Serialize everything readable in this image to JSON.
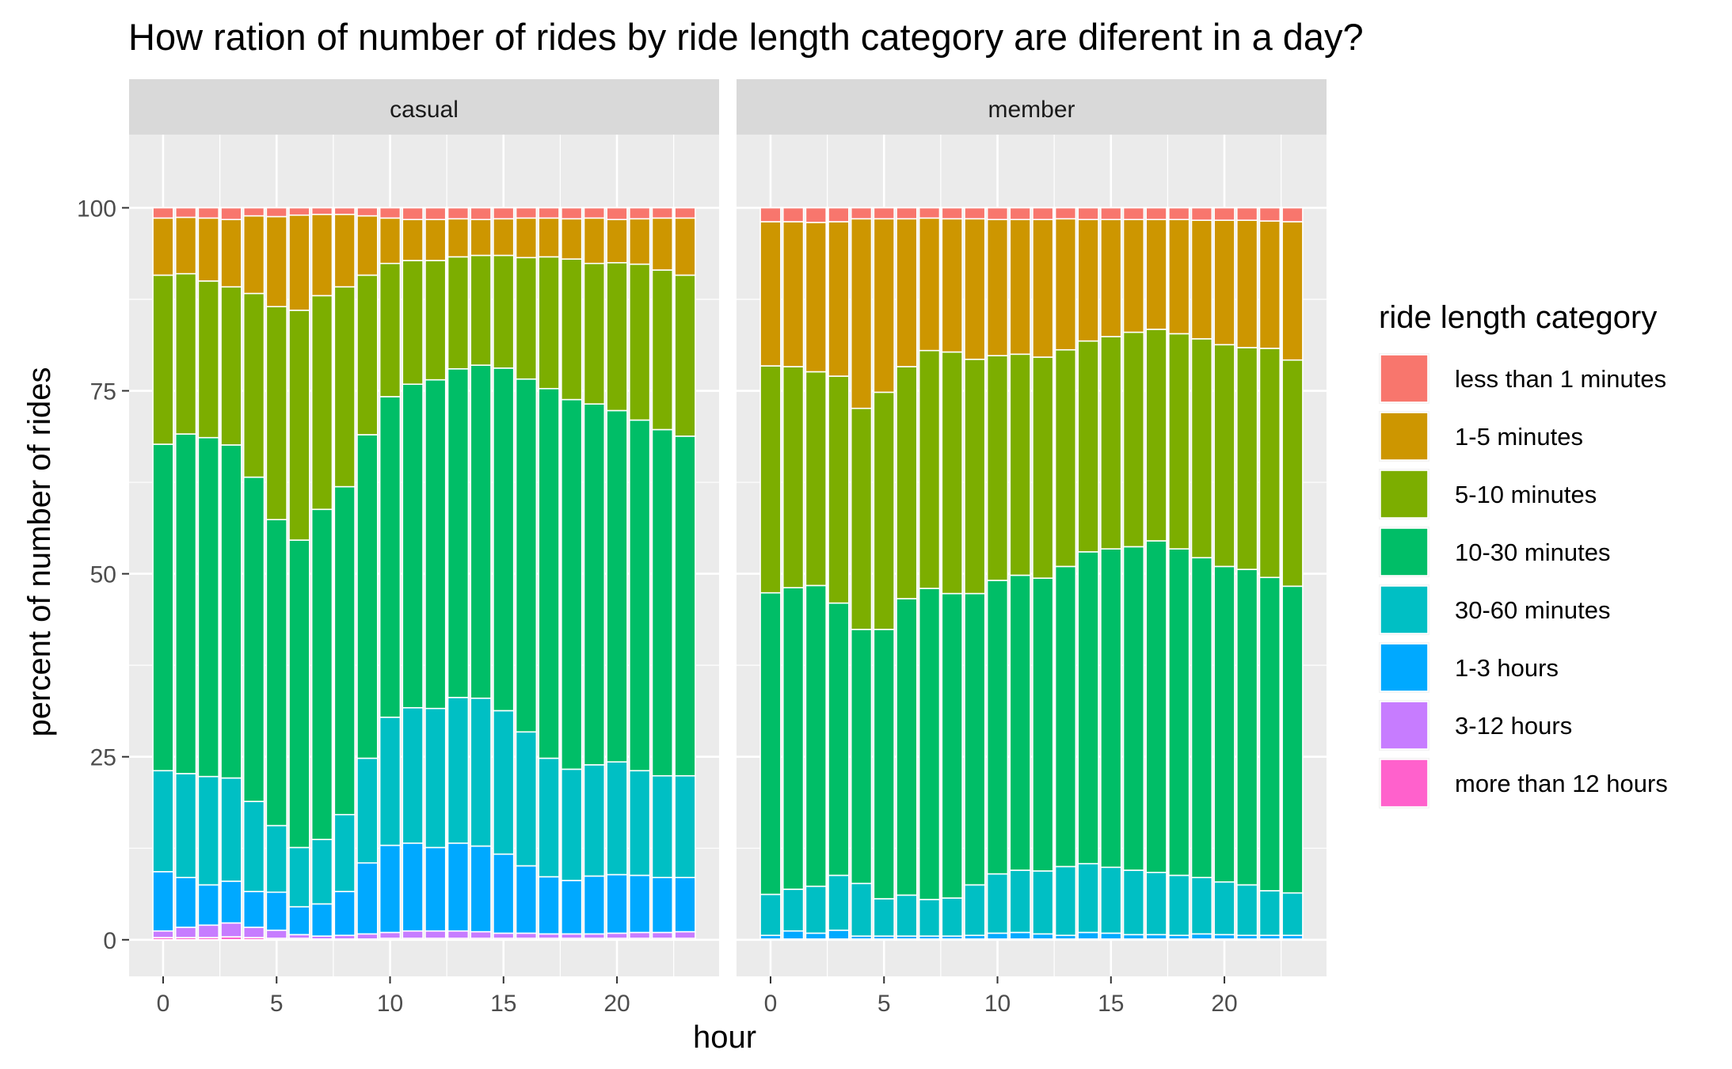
{
  "chart_data": {
    "type": "bar",
    "stacked": true,
    "title": "How ration of number of rides by ride length category are diferent in a day?",
    "xlabel": "hour",
    "ylabel": "percent of number of rides",
    "xlim": [
      -1.5,
      24.5
    ],
    "ylim": [
      -5,
      110
    ],
    "x_ticks": [
      0,
      5,
      10,
      15,
      20
    ],
    "y_ticks": [
      0,
      25,
      50,
      75,
      100
    ],
    "legend_title": "ride length category",
    "legend_position": "right",
    "grid": true,
    "series_order_bottom_to_top": [
      "more than 12 hours",
      "3-12 hours",
      "1-3 hours",
      "30-60 minutes",
      "10-30 minutes",
      "5-10 minutes",
      "1-5 minutes",
      "less than 1 minutes"
    ],
    "legend": [
      {
        "name": "less than 1 minutes",
        "color": "#F8766D"
      },
      {
        "name": "1-5 minutes",
        "color": "#CD9600"
      },
      {
        "name": "5-10 minutes",
        "color": "#7CAE00"
      },
      {
        "name": "10-30 minutes",
        "color": "#00BE67"
      },
      {
        "name": "30-60 minutes",
        "color": "#00BFC4"
      },
      {
        "name": "1-3 hours",
        "color": "#00A9FF"
      },
      {
        "name": "3-12 hours",
        "color": "#C77CFF"
      },
      {
        "name": "more than 12 hours",
        "color": "#FF61CC"
      }
    ],
    "x": [
      0,
      1,
      2,
      3,
      4,
      5,
      6,
      7,
      8,
      9,
      10,
      11,
      12,
      13,
      14,
      15,
      16,
      17,
      18,
      19,
      20,
      21,
      22,
      23
    ],
    "facets": [
      {
        "name": "casual",
        "cumulative": [
          [
            0.3,
            0.3,
            0.3,
            0.4,
            0.3,
            0.2,
            0.2,
            0.1,
            0.1,
            0.1,
            0.2,
            0.2,
            0.2,
            0.2,
            0.2,
            0.2,
            0.2,
            0.2,
            0.2,
            0.2,
            0.2,
            0.2,
            0.2,
            0.2
          ],
          [
            1.2,
            1.7,
            2.0,
            2.3,
            1.7,
            1.3,
            0.7,
            0.5,
            0.6,
            0.8,
            1.0,
            1.2,
            1.2,
            1.2,
            1.1,
            0.9,
            0.9,
            0.8,
            0.8,
            0.8,
            0.9,
            1.0,
            1.0,
            1.1
          ],
          [
            9.3,
            8.5,
            7.5,
            8.0,
            6.6,
            6.5,
            4.5,
            4.9,
            6.6,
            10.5,
            12.9,
            13.2,
            12.6,
            13.2,
            12.8,
            11.7,
            10.1,
            8.6,
            8.1,
            8.7,
            8.9,
            8.8,
            8.5,
            8.5
          ],
          [
            23.1,
            22.7,
            22.3,
            22.1,
            18.9,
            15.6,
            12.6,
            13.7,
            17.1,
            24.8,
            30.4,
            31.7,
            31.6,
            33.1,
            33.0,
            31.3,
            28.4,
            24.8,
            23.3,
            23.9,
            24.3,
            23.1,
            22.4,
            22.4
          ],
          [
            67.7,
            69.1,
            68.6,
            67.6,
            63.2,
            57.4,
            54.6,
            58.8,
            61.9,
            69.0,
            74.2,
            75.9,
            76.5,
            78.0,
            78.5,
            78.1,
            76.6,
            75.3,
            73.8,
            73.2,
            72.3,
            71.0,
            69.7,
            68.8
          ],
          [
            90.8,
            91.0,
            90.0,
            89.2,
            88.3,
            86.5,
            86.0,
            88.0,
            89.2,
            90.8,
            92.4,
            92.8,
            92.8,
            93.3,
            93.5,
            93.5,
            93.2,
            93.3,
            93.0,
            92.4,
            92.5,
            92.3,
            91.5,
            90.8
          ],
          [
            98.6,
            98.7,
            98.6,
            98.4,
            98.9,
            98.8,
            99.0,
            99.1,
            99.1,
            98.9,
            98.6,
            98.4,
            98.4,
            98.5,
            98.4,
            98.5,
            98.6,
            98.6,
            98.5,
            98.6,
            98.4,
            98.5,
            98.6,
            98.6
          ],
          [
            100,
            100,
            100,
            100,
            100,
            100,
            100,
            100,
            100,
            100,
            100,
            100,
            100,
            100,
            100,
            100,
            100,
            100,
            100,
            100,
            100,
            100,
            100,
            100
          ]
        ]
      },
      {
        "name": "member",
        "cumulative": [
          [
            0.05,
            0.05,
            0.05,
            0.05,
            0.05,
            0.05,
            0.05,
            0.05,
            0.05,
            0.05,
            0.05,
            0.05,
            0.05,
            0.05,
            0.05,
            0.05,
            0.05,
            0.05,
            0.05,
            0.05,
            0.05,
            0.05,
            0.05,
            0.05
          ],
          [
            0.1,
            0.1,
            0.1,
            0.1,
            0.1,
            0.1,
            0.1,
            0.1,
            0.1,
            0.1,
            0.1,
            0.1,
            0.1,
            0.1,
            0.1,
            0.1,
            0.1,
            0.1,
            0.1,
            0.1,
            0.1,
            0.1,
            0.1,
            0.1
          ],
          [
            0.6,
            1.2,
            0.9,
            1.3,
            0.5,
            0.5,
            0.5,
            0.5,
            0.5,
            0.6,
            0.9,
            1.0,
            0.8,
            0.6,
            1.0,
            0.9,
            0.7,
            0.7,
            0.6,
            0.8,
            0.7,
            0.6,
            0.6,
            0.6
          ],
          [
            6.2,
            6.9,
            7.3,
            8.8,
            7.7,
            5.6,
            6.1,
            5.5,
            5.7,
            7.5,
            9.0,
            9.5,
            9.4,
            10.0,
            10.4,
            9.9,
            9.5,
            9.2,
            8.8,
            8.5,
            7.9,
            7.5,
            6.7,
            6.4
          ],
          [
            47.4,
            48.1,
            48.4,
            46.0,
            42.4,
            42.4,
            46.6,
            48.0,
            47.3,
            47.3,
            49.1,
            49.8,
            49.4,
            51.0,
            53.0,
            53.4,
            53.7,
            54.5,
            53.4,
            52.2,
            51.0,
            50.6,
            49.5,
            48.3
          ],
          [
            78.4,
            78.3,
            77.6,
            77.0,
            72.6,
            74.8,
            78.3,
            80.5,
            80.3,
            79.3,
            79.8,
            80.0,
            79.6,
            80.6,
            81.8,
            82.4,
            83.0,
            83.4,
            82.8,
            82.1,
            81.3,
            80.9,
            80.8,
            79.2
          ],
          [
            98.1,
            98.1,
            98.0,
            98.1,
            98.5,
            98.5,
            98.5,
            98.6,
            98.5,
            98.5,
            98.4,
            98.4,
            98.4,
            98.5,
            98.4,
            98.4,
            98.4,
            98.4,
            98.4,
            98.3,
            98.3,
            98.3,
            98.2,
            98.1
          ],
          [
            100,
            100,
            100,
            100,
            100,
            100,
            100,
            100,
            100,
            100,
            100,
            100,
            100,
            100,
            100,
            100,
            100,
            100,
            100,
            100,
            100,
            100,
            100,
            100
          ]
        ]
      }
    ]
  }
}
